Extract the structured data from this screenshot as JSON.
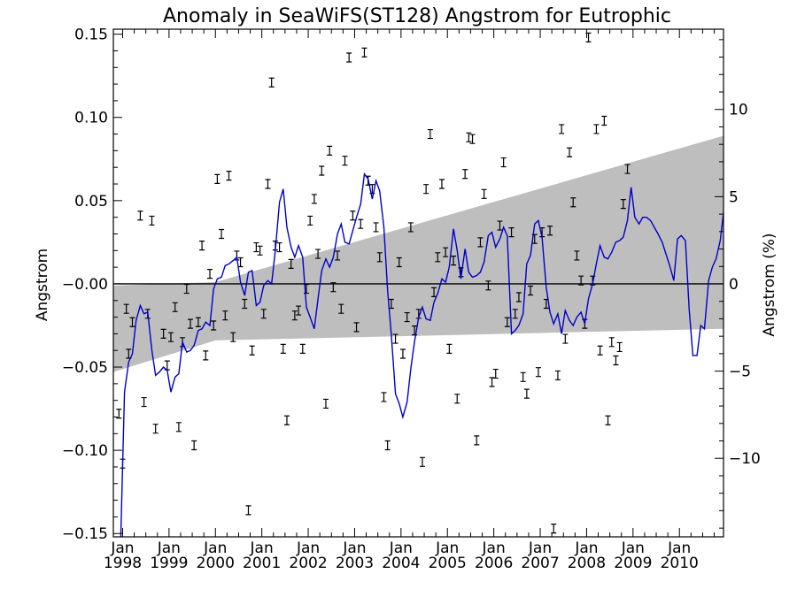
{
  "chart_data": {
    "type": "scatter",
    "title": "Anomaly in SeaWiFS(ST128) Angstrom for Eutrophic",
    "ylabel": "Angstrom",
    "ylabel_right": "Angstrom (%)",
    "xlim": [
      1997.8,
      2010.95
    ],
    "ylim": [
      -0.152,
      0.153
    ],
    "ylim_right": [
      -14.5,
      14.6
    ],
    "yticks": [
      -0.15,
      -0.1,
      -0.05,
      0.0,
      0.05,
      0.1,
      0.15
    ],
    "ytick_labels": [
      "−0.15",
      "−0.10",
      "−0.05",
      "−0.00",
      "0.05",
      "0.10",
      "0.15"
    ],
    "yticks_right": [
      -10,
      -5,
      0,
      5,
      10
    ],
    "ytick_labels_right": [
      "−10",
      "−5",
      "0",
      "5",
      "10"
    ],
    "xticks": [
      {
        "x": 1998,
        "month": "Jan",
        "year": "1998"
      },
      {
        "x": 1999,
        "month": "Jan",
        "year": "1999"
      },
      {
        "x": 2000,
        "month": "Jan",
        "year": "2000"
      },
      {
        "x": 2001,
        "month": "Jan",
        "year": "2001"
      },
      {
        "x": 2002,
        "month": "Jan",
        "year": "2002"
      },
      {
        "x": 2003,
        "month": "Jan",
        "year": "2003"
      },
      {
        "x": 2004,
        "month": "Jan",
        "year": "2004"
      },
      {
        "x": 2005,
        "month": "Jan",
        "year": "2005"
      },
      {
        "x": 2006,
        "month": "Jan",
        "year": "2006"
      },
      {
        "x": 2007,
        "month": "Jan",
        "year": "2007"
      },
      {
        "x": 2008,
        "month": "Jan",
        "year": "2008"
      },
      {
        "x": 2009,
        "month": "Jan",
        "year": "2009"
      },
      {
        "x": 2010,
        "month": "Jan",
        "year": "2010"
      }
    ],
    "trend_band": {
      "upper": [
        [
          1997.8,
          -0.001
        ],
        [
          2000.0,
          0.001
        ],
        [
          2010.95,
          0.089
        ]
      ],
      "lower": [
        [
          1997.8,
          -0.053
        ],
        [
          2000.0,
          -0.034
        ],
        [
          2010.95,
          -0.027
        ]
      ]
    },
    "zero_line": 0.0,
    "line_series": {
      "color": "#0000cc",
      "points": [
        [
          1997.96,
          -0.152
        ],
        [
          1998.04,
          -0.065
        ],
        [
          1998.13,
          -0.047
        ],
        [
          1998.21,
          -0.042
        ],
        [
          1998.29,
          -0.022
        ],
        [
          1998.38,
          -0.013
        ],
        [
          1998.46,
          -0.018
        ],
        [
          1998.54,
          -0.017
        ],
        [
          1998.63,
          -0.04
        ],
        [
          1998.71,
          -0.055
        ],
        [
          1998.79,
          -0.053
        ],
        [
          1998.88,
          -0.05
        ],
        [
          1998.96,
          -0.052
        ],
        [
          1999.04,
          -0.065
        ],
        [
          1999.13,
          -0.056
        ],
        [
          1999.21,
          -0.054
        ],
        [
          1999.29,
          -0.035
        ],
        [
          1999.38,
          -0.041
        ],
        [
          1999.46,
          -0.04
        ],
        [
          1999.54,
          -0.037
        ],
        [
          1999.63,
          -0.028
        ],
        [
          1999.71,
          -0.027
        ],
        [
          1999.79,
          -0.023
        ],
        [
          1999.88,
          -0.025
        ],
        [
          1999.96,
          -0.003
        ],
        [
          2000.04,
          0.003
        ],
        [
          2000.13,
          0.004
        ],
        [
          2000.21,
          0.011
        ],
        [
          2000.29,
          0.012
        ],
        [
          2000.38,
          0.014
        ],
        [
          2000.46,
          0.016
        ],
        [
          2000.54,
          0.001
        ],
        [
          2000.63,
          -0.007
        ],
        [
          2000.71,
          0.007
        ],
        [
          2000.79,
          0.008
        ],
        [
          2000.88,
          -0.013
        ],
        [
          2000.96,
          -0.011
        ],
        [
          2001.04,
          -0.001
        ],
        [
          2001.13,
          0.002
        ],
        [
          2001.21,
          -0.0
        ],
        [
          2001.29,
          0.02
        ],
        [
          2001.38,
          0.049
        ],
        [
          2001.46,
          0.057
        ],
        [
          2001.54,
          0.034
        ],
        [
          2001.63,
          0.022
        ],
        [
          2001.71,
          0.016
        ],
        [
          2001.79,
          0.023
        ],
        [
          2001.88,
          0.016
        ],
        [
          2001.96,
          -0.014
        ],
        [
          2002.04,
          -0.02
        ],
        [
          2002.13,
          -0.027
        ],
        [
          2002.21,
          -0.009
        ],
        [
          2002.29,
          0.008
        ],
        [
          2002.38,
          0.015
        ],
        [
          2002.46,
          0.01
        ],
        [
          2002.54,
          0.016
        ],
        [
          2002.63,
          0.03
        ],
        [
          2002.71,
          0.036
        ],
        [
          2002.79,
          0.025
        ],
        [
          2002.88,
          0.024
        ],
        [
          2002.96,
          0.032
        ],
        [
          2003.04,
          0.04
        ],
        [
          2003.13,
          0.048
        ],
        [
          2003.21,
          0.066
        ],
        [
          2003.29,
          0.063
        ],
        [
          2003.38,
          0.051
        ],
        [
          2003.46,
          0.062
        ],
        [
          2003.54,
          0.056
        ],
        [
          2003.63,
          0.034
        ],
        [
          2003.71,
          -0.004
        ],
        [
          2003.79,
          -0.03
        ],
        [
          2003.88,
          -0.066
        ],
        [
          2003.96,
          -0.072
        ],
        [
          2004.04,
          -0.08
        ],
        [
          2004.13,
          -0.071
        ],
        [
          2004.21,
          -0.051
        ],
        [
          2004.29,
          -0.035
        ],
        [
          2004.38,
          -0.02
        ],
        [
          2004.46,
          -0.014
        ],
        [
          2004.54,
          -0.021
        ],
        [
          2004.63,
          -0.022
        ],
        [
          2004.71,
          -0.011
        ],
        [
          2004.79,
          -0.006
        ],
        [
          2004.88,
          0.003
        ],
        [
          2004.96,
          0.001
        ],
        [
          2005.04,
          0.01
        ],
        [
          2005.13,
          0.033
        ],
        [
          2005.21,
          0.02
        ],
        [
          2005.29,
          0.003
        ],
        [
          2005.38,
          0.021
        ],
        [
          2005.46,
          0.007
        ],
        [
          2005.54,
          0.004
        ],
        [
          2005.63,
          0.005
        ],
        [
          2005.71,
          0.007
        ],
        [
          2005.79,
          0.013
        ],
        [
          2005.88,
          0.029
        ],
        [
          2005.96,
          0.031
        ],
        [
          2006.04,
          0.022
        ],
        [
          2006.13,
          0.027
        ],
        [
          2006.21,
          0.034
        ],
        [
          2006.29,
          0.029
        ],
        [
          2006.38,
          -0.03
        ],
        [
          2006.46,
          -0.028
        ],
        [
          2006.54,
          -0.025
        ],
        [
          2006.63,
          -0.018
        ],
        [
          2006.71,
          0.012
        ],
        [
          2006.79,
          0.017
        ],
        [
          2006.88,
          0.036
        ],
        [
          2006.96,
          0.038
        ],
        [
          2007.04,
          0.028
        ],
        [
          2007.13,
          -0.002
        ],
        [
          2007.21,
          -0.017
        ],
        [
          2007.29,
          -0.024
        ],
        [
          2007.38,
          -0.018
        ],
        [
          2007.46,
          -0.03
        ],
        [
          2007.54,
          -0.016
        ],
        [
          2007.63,
          -0.022
        ],
        [
          2007.71,
          -0.025
        ],
        [
          2007.79,
          -0.02
        ],
        [
          2007.88,
          -0.017
        ],
        [
          2007.96,
          -0.024
        ],
        [
          2008.04,
          -0.009
        ],
        [
          2008.13,
          0.0
        ],
        [
          2008.21,
          0.012
        ],
        [
          2008.29,
          0.023
        ],
        [
          2008.38,
          0.016
        ],
        [
          2008.46,
          0.015
        ],
        [
          2008.54,
          0.019
        ],
        [
          2008.63,
          0.025
        ],
        [
          2008.71,
          0.026
        ],
        [
          2008.79,
          0.028
        ],
        [
          2008.88,
          0.038
        ],
        [
          2008.96,
          0.058
        ],
        [
          2009.04,
          0.04
        ],
        [
          2009.13,
          0.036
        ],
        [
          2009.21,
          0.04
        ],
        [
          2009.29,
          0.04
        ],
        [
          2009.38,
          0.038
        ],
        [
          2009.46,
          0.034
        ],
        [
          2009.54,
          0.03
        ],
        [
          2009.63,
          0.025
        ],
        [
          2009.71,
          0.018
        ],
        [
          2009.79,
          0.011
        ],
        [
          2009.88,
          0.002
        ],
        [
          2009.96,
          0.027
        ],
        [
          2010.04,
          0.029
        ],
        [
          2010.13,
          0.026
        ],
        [
          2010.21,
          -0.015
        ],
        [
          2010.29,
          -0.043
        ],
        [
          2010.38,
          -0.043
        ],
        [
          2010.46,
          -0.025
        ],
        [
          2010.54,
          -0.027
        ],
        [
          2010.63,
          0.002
        ],
        [
          2010.71,
          0.01
        ],
        [
          2010.79,
          0.015
        ],
        [
          2010.88,
          0.026
        ],
        [
          2010.96,
          0.045
        ]
      ]
    },
    "error_markers": [
      [
        1997.92,
        -0.078
      ],
      [
        1998.0,
        -0.108
      ],
      [
        1998.08,
        -0.015
      ],
      [
        1998.13,
        -0.042
      ],
      [
        1998.21,
        -0.023
      ],
      [
        1998.38,
        0.041
      ],
      [
        1998.46,
        -0.071
      ],
      [
        1998.54,
        -0.018
      ],
      [
        1998.63,
        0.038
      ],
      [
        1998.71,
        -0.087
      ],
      [
        1998.88,
        -0.03
      ],
      [
        1998.96,
        -0.049
      ],
      [
        1999.04,
        -0.032
      ],
      [
        1999.13,
        -0.014
      ],
      [
        1999.21,
        -0.086
      ],
      [
        1999.29,
        -0.035
      ],
      [
        1999.38,
        -0.003
      ],
      [
        1999.46,
        -0.024
      ],
      [
        1999.54,
        -0.097
      ],
      [
        1999.63,
        -0.023
      ],
      [
        1999.71,
        0.023
      ],
      [
        1999.79,
        -0.043
      ],
      [
        1999.88,
        0.006
      ],
      [
        1999.96,
        -0.025
      ],
      [
        2000.04,
        0.063
      ],
      [
        2000.13,
        0.03
      ],
      [
        2000.21,
        -0.019
      ],
      [
        2000.29,
        0.065
      ],
      [
        2000.38,
        -0.032
      ],
      [
        2000.46,
        0.017
      ],
      [
        2000.54,
        0.013
      ],
      [
        2000.63,
        -0.012
      ],
      [
        2000.71,
        -0.136
      ],
      [
        2000.79,
        -0.04
      ],
      [
        2000.88,
        0.022
      ],
      [
        2000.96,
        0.02
      ],
      [
        2001.04,
        -0.018
      ],
      [
        2001.13,
        0.06
      ],
      [
        2001.21,
        0.121
      ],
      [
        2001.29,
        0.023
      ],
      [
        2001.38,
        0.022
      ],
      [
        2001.46,
        -0.039
      ],
      [
        2001.54,
        -0.082
      ],
      [
        2001.63,
        0.012
      ],
      [
        2001.71,
        -0.019
      ],
      [
        2001.79,
        -0.016
      ],
      [
        2001.88,
        -0.039
      ],
      [
        2001.96,
        -0.003
      ],
      [
        2002.04,
        0.038
      ],
      [
        2002.13,
        0.051
      ],
      [
        2002.21,
        0.018
      ],
      [
        2002.29,
        0.068
      ],
      [
        2002.38,
        -0.072
      ],
      [
        2002.46,
        0.08
      ],
      [
        2002.54,
        -0.002
      ],
      [
        2002.63,
        0.017
      ],
      [
        2002.71,
        -0.015
      ],
      [
        2002.79,
        0.074
      ],
      [
        2002.88,
        0.136
      ],
      [
        2002.96,
        0.041
      ],
      [
        2003.04,
        -0.026
      ],
      [
        2003.13,
        0.036
      ],
      [
        2003.21,
        0.139
      ],
      [
        2003.29,
        0.062
      ],
      [
        2003.38,
        0.057
      ],
      [
        2003.46,
        0.034
      ],
      [
        2003.54,
        0.016
      ],
      [
        2003.63,
        -0.068
      ],
      [
        2003.71,
        -0.097
      ],
      [
        2003.79,
        -0.012
      ],
      [
        2003.88,
        -0.033
      ],
      [
        2003.96,
        0.013
      ],
      [
        2004.04,
        -0.042
      ],
      [
        2004.13,
        -0.02
      ],
      [
        2004.21,
        0.034
      ],
      [
        2004.29,
        -0.028
      ],
      [
        2004.38,
        -0.018
      ],
      [
        2004.46,
        -0.107
      ],
      [
        2004.54,
        0.057
      ],
      [
        2004.63,
        0.09
      ],
      [
        2004.71,
        -0.005
      ],
      [
        2004.79,
        0.016
      ],
      [
        2004.88,
        0.06
      ],
      [
        2004.96,
        0.019
      ],
      [
        2005.04,
        -0.039
      ],
      [
        2005.13,
        0.014
      ],
      [
        2005.21,
        -0.069
      ],
      [
        2005.29,
        0.007
      ],
      [
        2005.38,
        0.066
      ],
      [
        2005.46,
        0.088
      ],
      [
        2005.54,
        0.087
      ],
      [
        2005.63,
        -0.094
      ],
      [
        2005.71,
        0.025
      ],
      [
        2005.79,
        0.054
      ],
      [
        2005.88,
        -0.001
      ],
      [
        2005.96,
        -0.059
      ],
      [
        2006.04,
        -0.054
      ],
      [
        2006.13,
        0.035
      ],
      [
        2006.21,
        0.073
      ],
      [
        2006.29,
        -0.023
      ],
      [
        2006.38,
        0.031
      ],
      [
        2006.46,
        -0.018
      ],
      [
        2006.54,
        -0.008
      ],
      [
        2006.63,
        -0.056
      ],
      [
        2006.71,
        -0.066
      ],
      [
        2006.79,
        -0.004
      ],
      [
        2006.88,
        0.027
      ],
      [
        2006.96,
        -0.053
      ],
      [
        2007.04,
        0.031
      ],
      [
        2007.13,
        -0.012
      ],
      [
        2007.21,
        0.032
      ],
      [
        2007.29,
        -0.147
      ],
      [
        2007.38,
        -0.055
      ],
      [
        2007.46,
        0.093
      ],
      [
        2007.54,
        -0.033
      ],
      [
        2007.63,
        0.079
      ],
      [
        2007.71,
        0.049
      ],
      [
        2007.79,
        0.017
      ],
      [
        2007.88,
        0.002
      ],
      [
        2007.96,
        -0.024
      ],
      [
        2008.04,
        0.148
      ],
      [
        2008.13,
        0.002
      ],
      [
        2008.21,
        0.093
      ],
      [
        2008.29,
        -0.04
      ],
      [
        2008.38,
        0.098
      ],
      [
        2008.46,
        -0.082
      ],
      [
        2008.54,
        -0.035
      ],
      [
        2008.63,
        -0.046
      ],
      [
        2008.71,
        -0.038
      ],
      [
        2008.79,
        0.048
      ],
      [
        2008.88,
        0.069
      ]
    ]
  }
}
